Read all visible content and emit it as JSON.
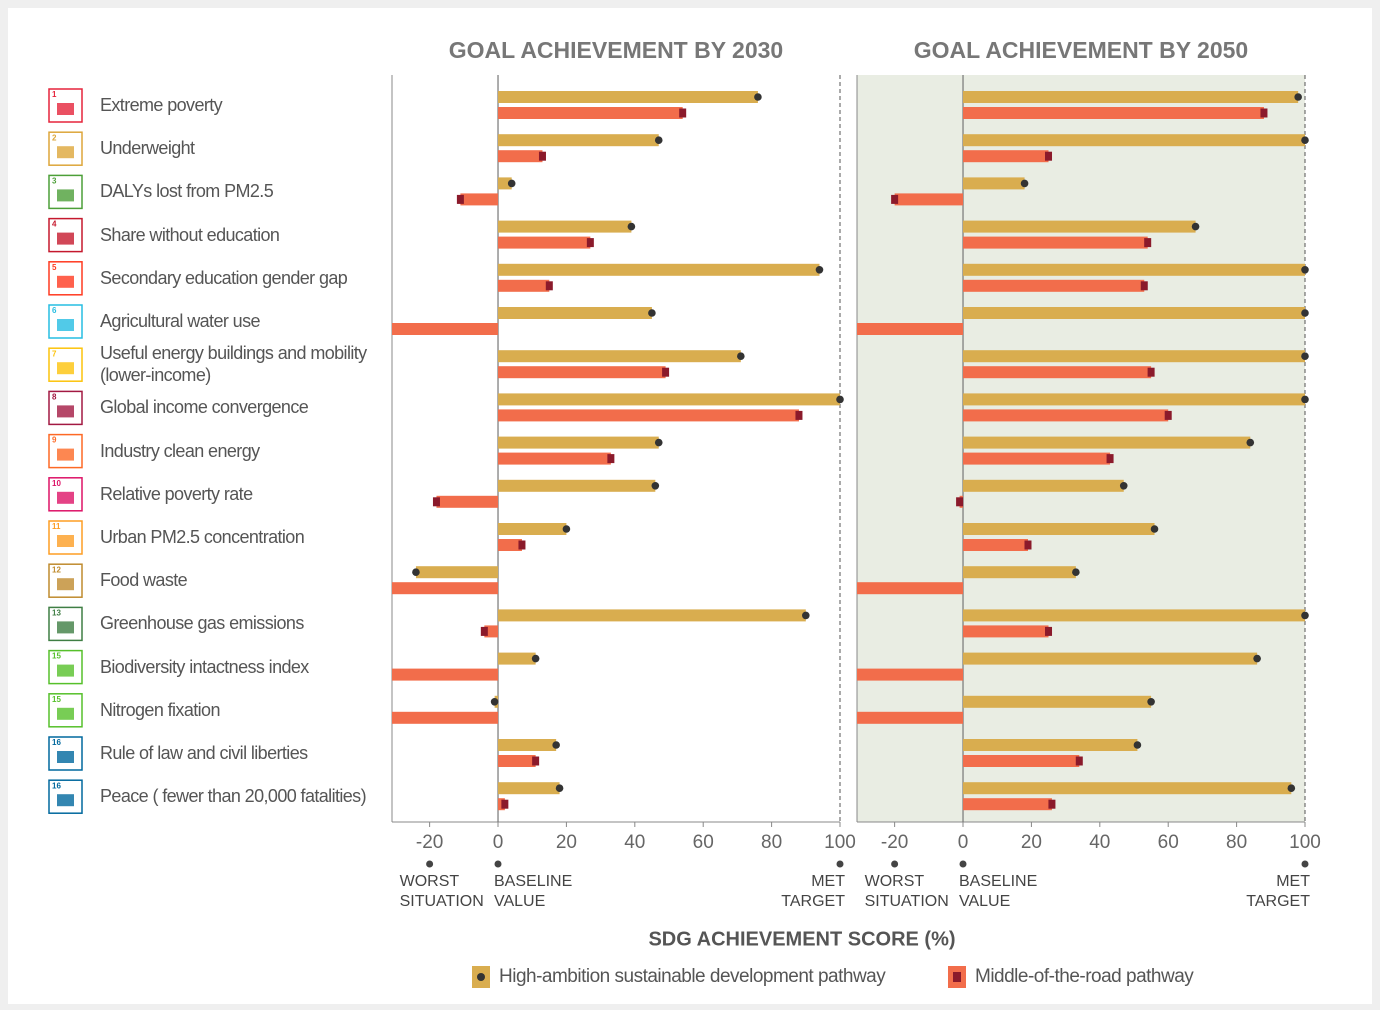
{
  "x_label": "SDG ACHIEVEMENT SCORE (%)",
  "row_icons": {
    "numbers": [
      1,
      2,
      3,
      4,
      5,
      6,
      7,
      8,
      9,
      10,
      11,
      12,
      13,
      15,
      15,
      16,
      16
    ],
    "colors": [
      "#e5243b",
      "#dda63a",
      "#4c9f38",
      "#c5192d",
      "#ff3a21",
      "#26bde2",
      "#fcc30b",
      "#a21942",
      "#fd6925",
      "#dd1367",
      "#fd9d24",
      "#bf8b2e",
      "#3f7e44",
      "#56c02b",
      "#56c02b",
      "#00689d",
      "#00689d"
    ]
  },
  "chart_data": [
    {
      "type": "bar",
      "title": "GOAL ACHIEVEMENT BY 2030",
      "categories": [
        "Extreme poverty",
        "Underweight",
        "DALYs lost from PM2.5",
        "Share without education",
        "Secondary education gender gap",
        "Agricultural water use",
        "Useful energy buildings and mobility (lower-income)",
        "Global income convergence",
        "Industry clean energy",
        "Relative poverty rate",
        "Urban PM2.5 concentration",
        "Food waste",
        "Greenhouse gas emissions",
        "Biodiversity intactness index",
        "Nitrogen fixation",
        "Rule of law and civil liberties",
        "Peace ( fewer than 20,000 fatalities)"
      ],
      "series": [
        {
          "name": "High-ambition sustainable development pathway",
          "color": "#d9ad4f",
          "marker_color": "#333333",
          "values": [
            76,
            47,
            4,
            39,
            94,
            45,
            71,
            100,
            47,
            46,
            20,
            -24,
            90,
            11,
            -1,
            17,
            18
          ]
        },
        {
          "name": "Middle-of-the-road pathway",
          "color": "#f26d4b",
          "marker_color": "#8b1a2b",
          "values": [
            54,
            13,
            -11,
            27,
            15,
            -31,
            49,
            88,
            33,
            -18,
            7,
            -31,
            -4,
            -31,
            -31,
            11,
            2
          ]
        }
      ],
      "xlim": [
        -31,
        100
      ],
      "xticks": [
        -20,
        0,
        20,
        40,
        60,
        80,
        100
      ],
      "annotations": [
        {
          "value": -20,
          "lines": [
            "WORST",
            "SITUATION"
          ]
        },
        {
          "value": 0,
          "lines": [
            "BASELINE",
            "VALUE"
          ]
        },
        {
          "value": 100,
          "lines": [
            "MET",
            "TARGET"
          ]
        }
      ]
    },
    {
      "type": "bar",
      "title": "GOAL ACHIEVEMENT BY 2050",
      "series": [
        {
          "color": "#d9ad4f",
          "marker_color": "#333333",
          "values": [
            98,
            100,
            18,
            68,
            100,
            100,
            100,
            100,
            84,
            47,
            56,
            33,
            100,
            86,
            55,
            51,
            96
          ]
        },
        {
          "color": "#f26d4b",
          "marker_color": "#8b1a2b",
          "values": [
            88,
            25,
            -20,
            54,
            53,
            -31,
            55,
            60,
            43,
            -1,
            19,
            -31,
            25,
            -31,
            -31,
            34,
            26
          ]
        }
      ],
      "xlim": [
        -31,
        100
      ],
      "xticks": [
        -20,
        0,
        20,
        40,
        60,
        80,
        100
      ],
      "background": "#e9ede3",
      "annotations": [
        {
          "value": -20,
          "lines": [
            "WORST",
            "SITUATION"
          ]
        },
        {
          "value": 0,
          "lines": [
            "BASELINE",
            "VALUE"
          ]
        },
        {
          "value": 100,
          "lines": [
            "MET",
            "TARGET"
          ]
        }
      ]
    }
  ]
}
